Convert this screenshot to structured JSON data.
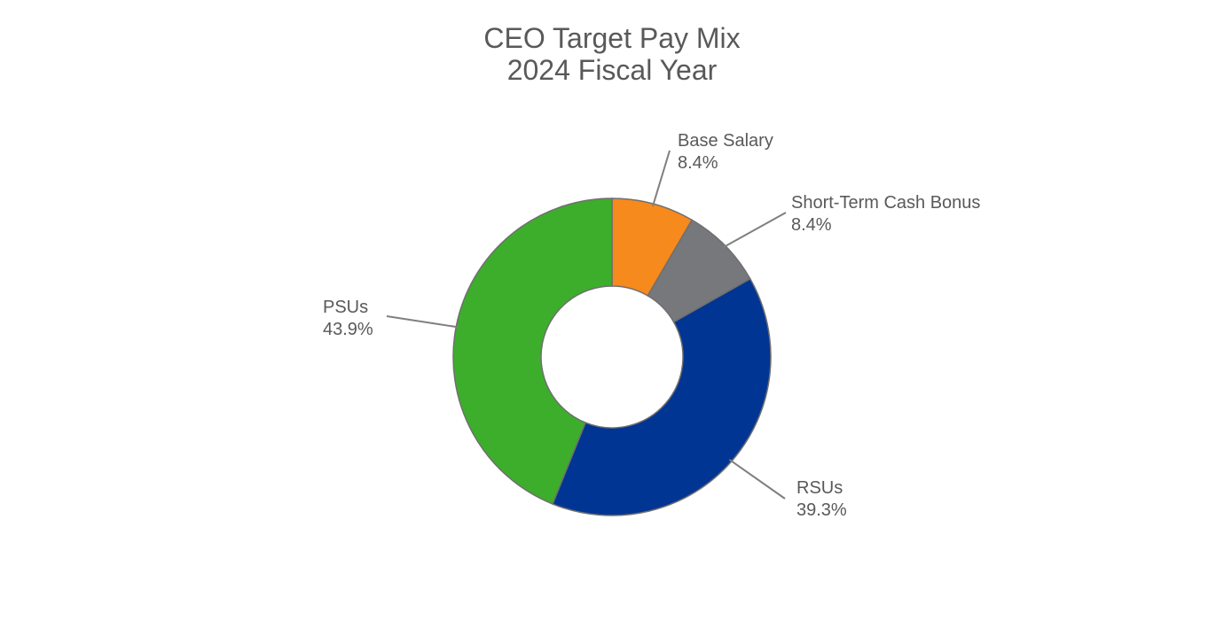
{
  "chart_data": {
    "type": "pie",
    "variant": "donut",
    "title": "CEO Target Pay Mix",
    "subtitle": "2024 Fiscal Year",
    "slices": [
      {
        "label": "Base Salary",
        "value": 8.4,
        "value_label": "8.4%",
        "color": "#F78A1D"
      },
      {
        "label": "Short-Term Cash Bonus",
        "value": 8.4,
        "value_label": "8.4%",
        "color": "#77787B"
      },
      {
        "label": "RSUs",
        "value": 39.3,
        "value_label": "39.3%",
        "color": "#003594"
      },
      {
        "label": "PSUs",
        "value": 43.9,
        "value_label": "43.9%",
        "color": "#3DAE2B"
      }
    ],
    "start_angle": "12 o'clock",
    "direction": "clockwise",
    "legend": "none"
  }
}
